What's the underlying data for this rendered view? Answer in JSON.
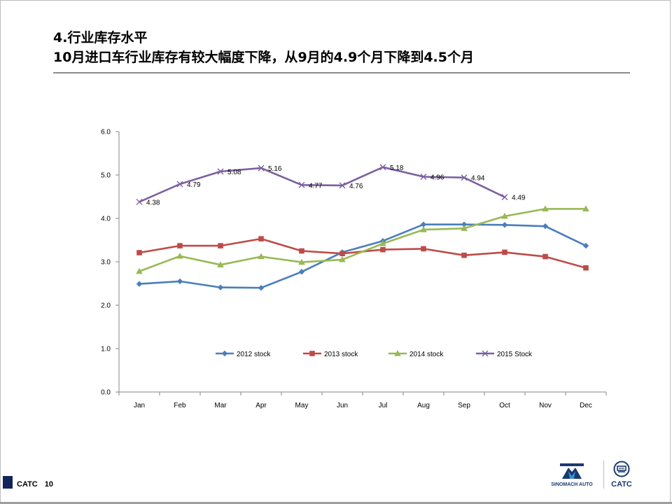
{
  "slide": {
    "title_line1": "4.行业库存水平",
    "title_line2": "10月进口车行业库存有较大幅度下降，从9月的4.9个月下降到4.5个月"
  },
  "footer": {
    "org": "CATC",
    "page_number": "10"
  },
  "logos": {
    "sinomach_text": "SINOMACH AUTO",
    "catc_text": "CATC"
  },
  "chart_data": {
    "type": "line",
    "title": "",
    "xlabel": "",
    "ylabel": "",
    "ylim": [
      0,
      6
    ],
    "yticks": [
      "0.0",
      "1.0",
      "2.0",
      "3.0",
      "4.0",
      "5.0",
      "6.0"
    ],
    "categories": [
      "Jan",
      "Feb",
      "Mar",
      "Apr",
      "May",
      "Jun",
      "Jul",
      "Aug",
      "Sep",
      "Oct",
      "Nov",
      "Dec"
    ],
    "grid": false,
    "legend_position": "bottom",
    "series": [
      {
        "name": "2012 stock",
        "color": "#4a7ebb",
        "marker": "diamond",
        "values": [
          2.49,
          2.55,
          2.41,
          2.4,
          2.77,
          3.22,
          3.48,
          3.86,
          3.86,
          3.85,
          3.82,
          3.37
        ]
      },
      {
        "name": "2013 stock",
        "color": "#be4b48",
        "marker": "square",
        "values": [
          3.21,
          3.37,
          3.37,
          3.53,
          3.25,
          3.19,
          3.28,
          3.3,
          3.15,
          3.22,
          3.12,
          2.86
        ]
      },
      {
        "name": "2014 stock",
        "color": "#98b954",
        "marker": "triangle",
        "values": [
          2.78,
          3.13,
          2.93,
          3.12,
          2.99,
          3.05,
          3.42,
          3.74,
          3.77,
          4.05,
          4.22,
          4.22
        ]
      },
      {
        "name": "2015 Stock",
        "color": "#7d60a0",
        "marker": "x",
        "values": [
          4.38,
          4.79,
          5.08,
          5.16,
          4.77,
          4.76,
          5.18,
          4.96,
          4.94,
          4.49,
          null,
          null
        ],
        "data_labels": [
          "4.38",
          "4.79",
          "5.08",
          "5.16",
          "4.77",
          "4.76",
          "5.18",
          "4.96",
          "4.94",
          "4.49"
        ]
      }
    ]
  }
}
